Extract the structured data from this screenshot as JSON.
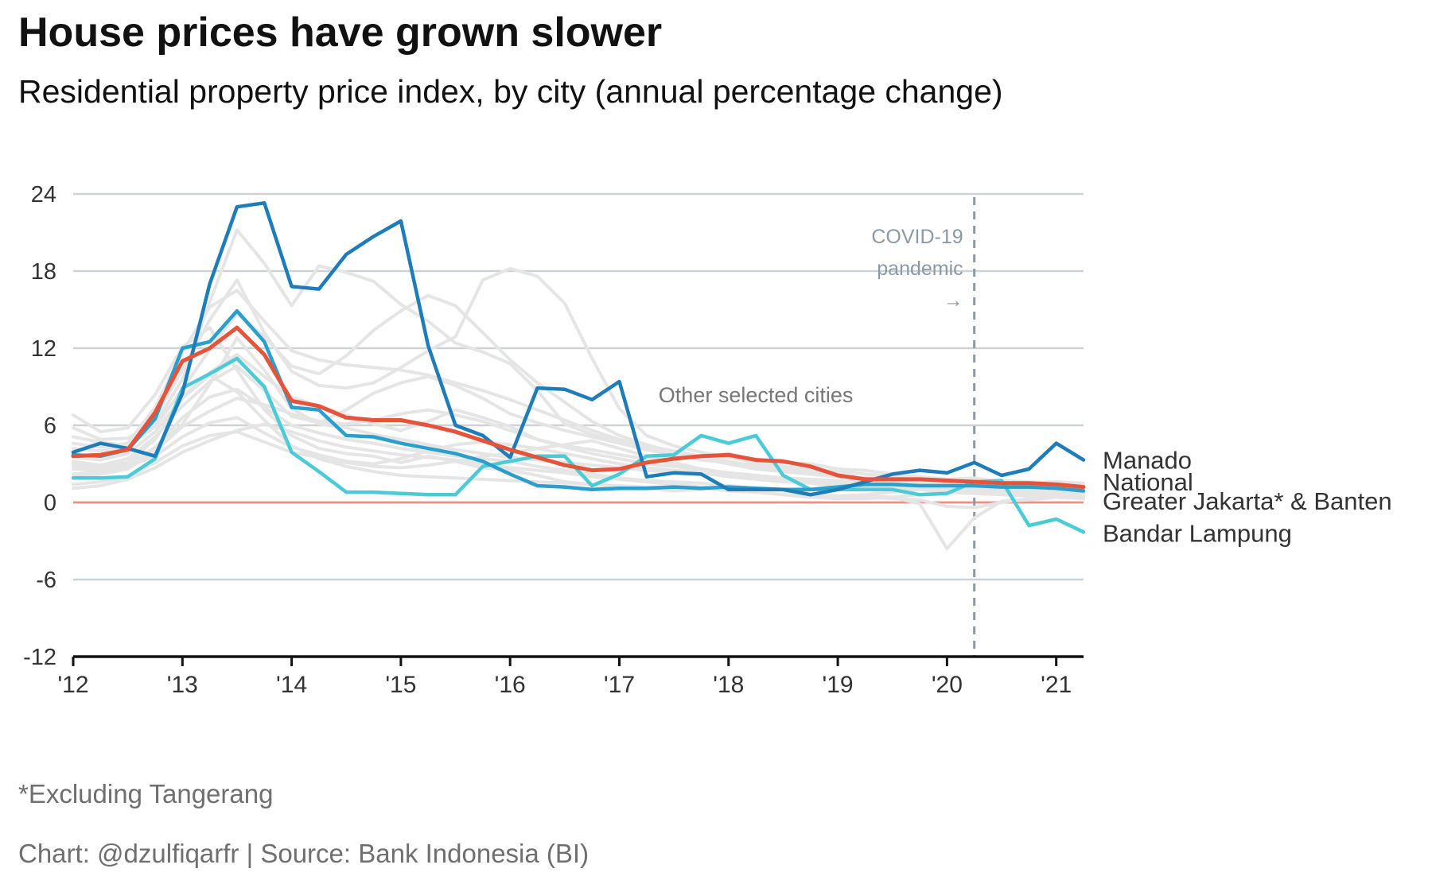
{
  "title": "House prices have grown slower",
  "subtitle": "Residential property price index, by city (annual percentage change)",
  "footnote": "*Excluding Tangerang",
  "credit": "Chart: @dzulfiqarfr | Source: Bank Indonesia (BI)",
  "colors": {
    "background": "#ffffff",
    "gridline": "#cbd3d9",
    "zero_line": "#ec8f84",
    "axis_line": "#111111",
    "tick_text": "#333333",
    "annotation": "#8b9aa5",
    "other_cities": "#e5e5e5",
    "manado": "#1e7db9",
    "national": "#e4533a",
    "greater_jakarta": "#2a9fcc",
    "bandar_lampung": "#4ccbd6"
  },
  "chart_data": {
    "type": "line",
    "title": "House prices have grown slower",
    "subtitle": "Residential property price index, by city (annual percentage change)",
    "xlabel": "",
    "ylabel": "",
    "x_unit": "quarter",
    "x_ticks": [
      2012,
      2013,
      2014,
      2015,
      2016,
      2017,
      2018,
      2019,
      2020,
      2021
    ],
    "x_tick_labels": [
      "'12",
      "'13",
      "'14",
      "'15",
      "'16",
      "'17",
      "'18",
      "'19",
      "'20",
      "'21"
    ],
    "xlim": [
      "2012 Q1",
      "2021 Q2"
    ],
    "y_ticks": [
      -12,
      -6,
      0,
      6,
      12,
      18,
      24
    ],
    "y_tick_labels": [
      "-12",
      "-6",
      "0",
      "6",
      "12",
      "18",
      "24"
    ],
    "ylim": [
      -12,
      24
    ],
    "grid": true,
    "x": [
      "2012 Q1",
      "2012 Q2",
      "2012 Q3",
      "2012 Q4",
      "2013 Q1",
      "2013 Q2",
      "2013 Q3",
      "2013 Q4",
      "2014 Q1",
      "2014 Q2",
      "2014 Q3",
      "2014 Q4",
      "2015 Q1",
      "2015 Q2",
      "2015 Q3",
      "2015 Q4",
      "2016 Q1",
      "2016 Q2",
      "2016 Q3",
      "2016 Q4",
      "2017 Q1",
      "2017 Q2",
      "2017 Q3",
      "2017 Q4",
      "2018 Q1",
      "2018 Q2",
      "2018 Q3",
      "2018 Q4",
      "2019 Q1",
      "2019 Q2",
      "2019 Q3",
      "2019 Q4",
      "2020 Q1",
      "2020 Q2",
      "2020 Q3",
      "2020 Q4",
      "2021 Q1",
      "2021 Q2"
    ],
    "series": [
      {
        "name": "Manado",
        "color": "#1e7db9",
        "values": [
          3.9,
          4.6,
          4.2,
          3.6,
          8.5,
          17,
          23,
          23.3,
          16.8,
          16.6,
          19.3,
          20.7,
          21.9,
          12.2,
          6,
          5.2,
          3.5,
          8.9,
          8.8,
          8,
          9.4,
          2,
          2.3,
          2.2,
          1,
          1,
          1,
          0.6,
          1,
          1.6,
          2.2,
          2.5,
          2.3,
          3.1,
          2.1,
          2.6,
          4.6,
          3.3
        ]
      },
      {
        "name": "National",
        "color": "#e4533a",
        "values": [
          3.6,
          3.7,
          4.1,
          7,
          11,
          12,
          13.6,
          11.5,
          7.9,
          7.5,
          6.6,
          6.4,
          6.4,
          6,
          5.5,
          4.8,
          4.1,
          3.5,
          2.9,
          2.5,
          2.6,
          3.1,
          3.4,
          3.6,
          3.7,
          3.3,
          3.2,
          2.8,
          2.1,
          1.8,
          1.8,
          1.8,
          1.7,
          1.6,
          1.5,
          1.5,
          1.4,
          1.2
        ]
      },
      {
        "name": "Greater Jakarta* & Banten",
        "color": "#2a9fcc",
        "values": [
          3.7,
          3.6,
          4.1,
          6.5,
          12,
          12.5,
          14.9,
          12.5,
          7.4,
          7.2,
          5.2,
          5.1,
          4.6,
          4.2,
          3.8,
          3.2,
          2.2,
          1.3,
          1.2,
          1,
          1.1,
          1.1,
          1.2,
          1.1,
          1.2,
          1.1,
          1,
          1,
          1.2,
          1.4,
          1.4,
          1.3,
          1.3,
          1.3,
          1.2,
          1.2,
          1.1,
          0.9
        ]
      },
      {
        "name": "Bandar Lampung",
        "color": "#4ccbd6",
        "values": [
          1.9,
          1.9,
          2,
          3.4,
          8.9,
          10,
          11.2,
          9,
          3.9,
          2.4,
          0.8,
          0.8,
          0.7,
          0.6,
          0.6,
          2.8,
          3.2,
          3.6,
          3.6,
          1.3,
          2.2,
          3.6,
          3.7,
          5.2,
          4.6,
          5.2,
          2.1,
          1,
          1,
          1,
          1,
          0.6,
          0.7,
          1.6,
          1.7,
          -1.8,
          -1.3,
          -2.3
        ]
      }
    ],
    "labels": {
      "Manado": "Manado",
      "National": "National",
      "Greater Jakarta* & Banten": "Greater Jakarta* & Banten",
      "Bandar Lampung": "Bandar Lampung"
    },
    "annotations": {
      "other_cities": "Other selected cities",
      "covid_line1": "COVID-19",
      "covid_line2": "pandemic",
      "covid_arrow": "→",
      "covid_at": "2020 Q2"
    },
    "other_series": [
      [
        6.8,
        5.5,
        5.8,
        8.4,
        12.1,
        13.6,
        10.3,
        7.2,
        5.2,
        4.2,
        3.8,
        3.6,
        3.1,
        3.6,
        3.2,
        2.7,
        2.5,
        2.1,
        1.6,
        1.4,
        1.2,
        1.1,
        0.9,
        1,
        1.3,
        0.9,
        0.6,
        0.4,
        0.4,
        0.5,
        0.4,
        -0.1,
        -3.6,
        -1.2,
        0.1,
        0.2,
        0.4,
        0.5
      ],
      [
        5.8,
        4.9,
        5,
        6.1,
        9.6,
        15.6,
        21.2,
        18.6,
        15.3,
        18.4,
        17.9,
        17.2,
        15.4,
        14.1,
        12.4,
        11.7,
        10.8,
        8.7,
        6.1,
        5.3,
        4.7,
        4.3,
        4,
        3.5,
        3.8,
        3.3,
        3.1,
        3,
        2.6,
        2.5,
        2.2,
        2,
        1.8,
        1.9,
        1.6,
        1.5,
        1.6,
        1.5
      ],
      [
        3.5,
        3.3,
        3.8,
        5.5,
        8.2,
        10.1,
        11.5,
        9.8,
        8.2,
        7.5,
        6.8,
        6.1,
        5.6,
        6.3,
        7.2,
        6.6,
        5.9,
        4.9,
        4.4,
        4.1,
        3.7,
        3.4,
        3,
        2.6,
        2.3,
        2.1,
        1.8,
        1.7,
        1.6,
        1.4,
        1.5,
        1.4,
        1.1,
        1.1,
        0.9,
        0.9,
        0.8,
        0.8
      ],
      [
        2.8,
        2.6,
        3.1,
        4.2,
        6.1,
        9.2,
        12.8,
        10.3,
        7.3,
        6.1,
        5.8,
        5.3,
        4.9,
        4.5,
        4.1,
        3.8,
        3.5,
        3.3,
        3.1,
        2.9,
        2.7,
        2.5,
        2.3,
        2.4,
        2.1,
        1.9,
        1.7,
        1.6,
        1.5,
        1.4,
        1.3,
        1.2,
        1,
        1.1,
        1.2,
        1.1,
        1,
        0.9
      ],
      [
        4.2,
        4,
        4.4,
        6.6,
        10.3,
        14.2,
        17.3,
        13.2,
        10.2,
        9.1,
        8.9,
        9.3,
        10.5,
        11.8,
        12.9,
        17.3,
        18.2,
        17.6,
        15.5,
        11.2,
        7.3,
        5.2,
        4.4,
        3.9,
        3.5,
        3.1,
        2.8,
        2.6,
        2.4,
        2.2,
        2,
        1.9,
        1.8,
        1.7,
        1.7,
        1.6,
        1.5,
        1.4
      ],
      [
        2.2,
        2.4,
        2.8,
        3.6,
        5.1,
        6.2,
        6.6,
        5.4,
        4.3,
        3.7,
        3.2,
        3,
        3.4,
        4,
        4.5,
        4.7,
        4.5,
        4.2,
        3.8,
        3.4,
        3,
        2.7,
        2.5,
        2.3,
        2,
        1.8,
        1.6,
        1.5,
        1.3,
        1.2,
        1.2,
        1.1,
        1,
        0.9,
        0.9,
        0.8,
        0.8,
        0.7
      ],
      [
        1.4,
        1.6,
        2,
        3.1,
        4.4,
        5.2,
        5.5,
        4.7,
        3.9,
        3.5,
        3.1,
        2.8,
        2.7,
        2.9,
        3.2,
        3.6,
        3.8,
        4.2,
        4.5,
        4.8,
        4.2,
        3.6,
        3.1,
        2.6,
        2.2,
        1.9,
        1.7,
        1.5,
        1.4,
        1.3,
        1.1,
        1,
        0.8,
        0.7,
        0.6,
        0.5,
        0.4,
        0.3
      ],
      [
        3.2,
        2.9,
        3.4,
        5.1,
        7.5,
        9.4,
        10.6,
        8.7,
        6.7,
        6.2,
        7.2,
        8.5,
        9.3,
        9.8,
        9.1,
        8.1,
        6.9,
        6.2,
        5.6,
        5.1,
        4.6,
        4.1,
        3.7,
        3.3,
        3.1,
        2.9,
        2.6,
        2.4,
        2.1,
        1.9,
        1.8,
        1.6,
        1.4,
        1.2,
        1.1,
        1,
        0.9,
        0.9
      ],
      [
        2.6,
        2.5,
        2.9,
        4.3,
        6.6,
        8.2,
        8.8,
        7.4,
        6,
        5.4,
        4.9,
        4.6,
        4.2,
        3.9,
        3.6,
        3.4,
        3.2,
        2.8,
        2.5,
        2.2,
        1.9,
        1.7,
        1.6,
        1.5,
        1.3,
        1.1,
        0.9,
        0.7,
        0.5,
        0.6,
        0.8,
        1,
        1.1,
        0.9,
        0.7,
        0.6,
        0.5,
        0.5
      ],
      [
        5.1,
        4.7,
        4.4,
        5.9,
        8.8,
        11.9,
        14.7,
        12.9,
        10.6,
        10,
        11.4,
        13.4,
        14.9,
        16.1,
        15.3,
        13.2,
        11.1,
        9.3,
        7.8,
        6.3,
        5.2,
        4.5,
        3.9,
        3.4,
        3,
        2.6,
        2.4,
        2.2,
        2,
        1.9,
        1.8,
        1.8,
        1.7,
        1.6,
        1.5,
        1.5,
        1.4,
        1.3
      ],
      [
        1.1,
        1.3,
        1.8,
        2.7,
        3.9,
        4.8,
        5.6,
        6.1,
        5.5,
        4.8,
        4.3,
        4,
        3.7,
        3.5,
        3.3,
        3,
        2.7,
        2.5,
        2.3,
        2,
        1.8,
        1.6,
        1.4,
        1.2,
        1,
        0.8,
        0.6,
        0.4,
        0.3,
        0.3,
        0.4,
        0.6,
        0.8,
        0.9,
        0.8,
        0.7,
        0.7,
        0.6
      ],
      [
        4.6,
        4.3,
        4.6,
        7.4,
        11.7,
        15.2,
        16.5,
        14.1,
        11.8,
        11.1,
        10.7,
        10.5,
        10.3,
        9.9,
        9.3,
        8.7,
        8,
        7.2,
        6.4,
        5.6,
        4.9,
        4.4,
        4,
        3.6,
        3.2,
        2.8,
        2.5,
        2.2,
        2,
        1.8,
        1.7,
        1.6,
        1.6,
        1.5,
        1.4,
        1.4,
        1.3,
        1.3
      ],
      [
        3,
        2.8,
        3.1,
        4.9,
        8.1,
        9.9,
        8.6,
        6.4,
        4.4,
        3.4,
        2.8,
        2.4,
        2.1,
        2,
        1.9,
        1.8,
        1.7,
        1.6,
        1.5,
        1.4,
        1.3,
        1.2,
        1.2,
        1.1,
        0.9,
        0.8,
        0.6,
        0.5,
        0.4,
        0.4,
        0.3,
        0.2,
        -0.3,
        -0.4,
        0,
        0.3,
        0.4,
        0.4
      ],
      [
        2,
        2.2,
        2.6,
        4,
        5.9,
        7.1,
        8.1,
        7.6,
        6.9,
        6.3,
        6.1,
        6.4,
        6.9,
        7.2,
        6.8,
        6.3,
        5.6,
        4.9,
        4.3,
        3.8,
        3.4,
        3,
        2.8,
        2.5,
        2.3,
        2.1,
        1.9,
        1.8,
        1.7,
        1.6,
        1.5,
        1.4,
        1.3,
        1.2,
        1.2,
        1.1,
        1,
        1
      ]
    ]
  }
}
